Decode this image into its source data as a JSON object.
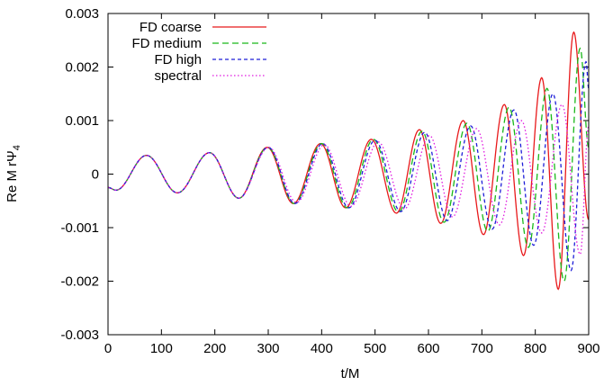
{
  "chart_data": {
    "type": "line",
    "title": "",
    "xlabel": "t/M",
    "ylabel": "Re M rΨ",
    "ylabel_subscript": "4",
    "xlim": [
      0,
      900
    ],
    "ylim": [
      -0.003,
      0.003
    ],
    "x_ticks": [
      0,
      100,
      200,
      300,
      400,
      500,
      600,
      700,
      800,
      900
    ],
    "x_tick_labels": [
      "0",
      "100",
      "200",
      "300",
      "400",
      "500",
      "600",
      "700",
      "800",
      "900"
    ],
    "y_ticks": [
      -0.003,
      -0.002,
      -0.001,
      0,
      0.001,
      0.002,
      0.003
    ],
    "y_tick_labels": [
      "-0.003",
      "-0.002",
      "-0.001",
      "0",
      "0.001",
      "0.002",
      "0.003"
    ],
    "grid": false,
    "legend_position": "top-left",
    "series": [
      {
        "name": "FD coarse",
        "color": "#e8191b",
        "dash": "solid",
        "x": [
          0,
          15,
          72,
          130,
          190,
          245,
          298,
          347,
          398,
          445,
          493,
          540,
          583,
          623,
          665,
          703,
          742,
          778,
          812,
          843,
          872,
          900
        ],
        "y": [
          -0.00025,
          -0.0003,
          0.00035,
          -0.00035,
          0.0004,
          -0.00045,
          0.0005,
          -0.00055,
          0.00057,
          -0.00063,
          0.00065,
          -0.00073,
          0.00083,
          -0.00092,
          0.001,
          -0.00113,
          0.0013,
          -0.00152,
          0.0018,
          -0.00215,
          0.00265,
          -0.00085
        ]
      },
      {
        "name": "FD medium",
        "color": "#19b819",
        "dash": "long",
        "x": [
          0,
          15,
          72,
          130,
          190,
          245,
          299,
          349,
          400,
          448,
          497,
          544,
          588,
          629,
          672,
          711,
          751,
          787,
          822,
          854,
          884,
          900
        ],
        "y": [
          -0.00025,
          -0.0003,
          0.00035,
          -0.00035,
          0.0004,
          -0.00045,
          0.0005,
          -0.00055,
          0.00057,
          -0.00063,
          0.00065,
          -0.00071,
          0.0008,
          -0.0009,
          0.00095,
          -0.00107,
          0.00125,
          -0.00137,
          0.0016,
          -0.002,
          0.00235,
          0.0005
        ]
      },
      {
        "name": "FD high",
        "color": "#1f1fd8",
        "dash": "short",
        "x": [
          0,
          15,
          72,
          130,
          190,
          245,
          300,
          350,
          402,
          451,
          500,
          548,
          593,
          635,
          679,
          719,
          760,
          797,
          833,
          867,
          895,
          900
        ],
        "y": [
          -0.00025,
          -0.0003,
          0.00035,
          -0.00035,
          0.0004,
          -0.00045,
          0.0005,
          -0.00055,
          0.00057,
          -0.00063,
          0.00063,
          -0.0007,
          0.00078,
          -0.00087,
          0.0009,
          -0.00103,
          0.0012,
          -0.00133,
          0.0015,
          -0.0018,
          0.0021,
          0.0016
        ]
      },
      {
        "name": "spectral",
        "color": "#e019e0",
        "dash": "dotted",
        "x": [
          0,
          15,
          72,
          130,
          190,
          245,
          301,
          353,
          405,
          455,
          506,
          555,
          602,
          645,
          690,
          733,
          774,
          812,
          850,
          884,
          900
        ],
        "y": [
          -0.00025,
          -0.0003,
          0.00035,
          -0.00035,
          0.0004,
          -0.00045,
          0.0005,
          -0.00053,
          0.00055,
          -0.0006,
          0.0006,
          -0.00065,
          0.00072,
          -0.0008,
          0.00085,
          -0.00095,
          0.001,
          -0.0011,
          0.0013,
          -0.0015,
          0.0009
        ]
      }
    ]
  }
}
